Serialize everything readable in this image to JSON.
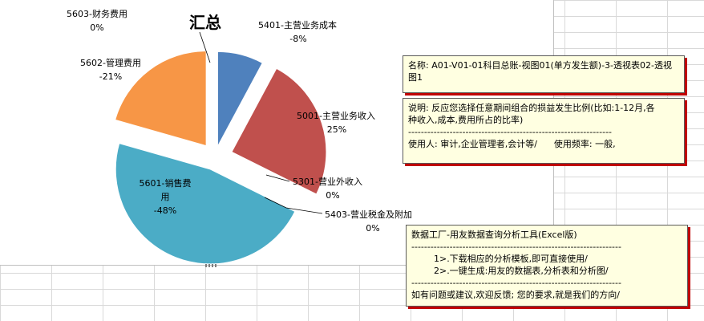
{
  "chart_data": {
    "type": "pie",
    "title": "汇总",
    "slices": [
      {
        "code_name": "5401-主营业务成本",
        "label_value": "-8%",
        "value": 8,
        "color": "#4f81bd"
      },
      {
        "code_name": "5001-主营业务收入",
        "label_value": "25%",
        "value": 25,
        "color": "#c0504d"
      },
      {
        "code_name": "5301-营业外收入",
        "label_value": "0%",
        "value": 0,
        "color": "#9bbb59"
      },
      {
        "code_name": "5403-营业税金及附加",
        "label_value": "0%",
        "value": 0,
        "color": "#8064a2"
      },
      {
        "code_name": "5601-销售费用",
        "label_value": "-48%",
        "value": 48,
        "color": "#4bacc6"
      },
      {
        "code_name": "5602-管理费用",
        "label_value": "-21%",
        "value": 21,
        "color": "#f79646"
      },
      {
        "code_name": "5603-财务费用",
        "label_value": "0%",
        "value": 0,
        "color": "#2c4d75"
      }
    ],
    "legend": "none",
    "exploded": true
  },
  "notes": {
    "name": "名称: A01-V01-01科目总账-视图01(单方发生额)-3-透视表02-透视图1",
    "description": {
      "line1": "说明: 反应您选择任意期间组合的损益发生比例(比如:1-12月,各",
      "line2": "种收入,成本,费用所占的比率)",
      "divider": "----------------------------------------------------------------",
      "line3": "使用人: 审计,企业管理者,会计等/      使用频率: 一般,"
    },
    "factory": {
      "line1": "数据工厂-用友数据查询分析工具(Excel版)",
      "divider1": "------------------------------------------------------------------",
      "line2": "        1>.下载相应的分析模板,即可直接使用/",
      "line3": "        2>.一键生成:用友的数据表,分析表和分析图/",
      "divider2": "------------------------------------------------------------------",
      "line4": "如有问题或建议,欢迎反馈; 您的要求,就是我们的方向/"
    }
  }
}
